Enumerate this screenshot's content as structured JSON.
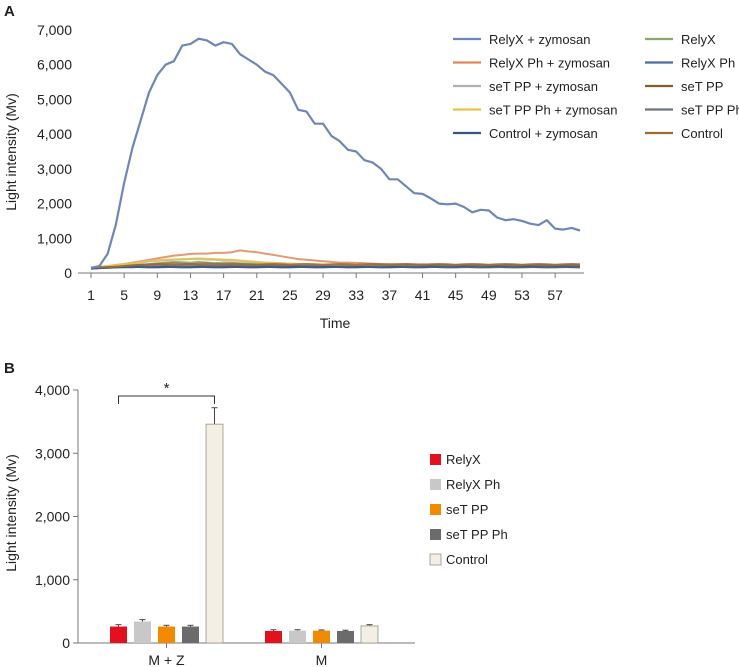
{
  "chart_data": [
    {
      "panel_label": "A",
      "type": "line",
      "xlabel": "Time",
      "ylabel": "Light intensity (Mv)",
      "xlim": [
        1,
        60
      ],
      "ylim": [
        0,
        7000
      ],
      "x_ticks": [
        1,
        5,
        9,
        13,
        17,
        21,
        25,
        29,
        33,
        37,
        41,
        45,
        49,
        53,
        57
      ],
      "y_ticks": [
        0,
        1000,
        2000,
        3000,
        4000,
        5000,
        6000,
        7000
      ],
      "y_tick_labels": [
        "0",
        "1,000",
        "2,000",
        "3,000",
        "4,000",
        "5,000",
        "6,000",
        "7,000"
      ],
      "legend_placement": "top-right",
      "series": [
        {
          "name": "RelyX + zymosan",
          "color": "#6e86b8",
          "values": [
            150,
            200,
            550,
            1400,
            2600,
            3600,
            4400,
            5200,
            5700,
            6000,
            6100,
            6550,
            6600,
            6750,
            6700,
            6550,
            6650,
            6600,
            6300,
            6150,
            6000,
            5800,
            5700,
            5450,
            5200,
            4700,
            4650,
            4300,
            4300,
            3950,
            3800,
            3550,
            3500,
            3250,
            3180,
            3000,
            2700,
            2700,
            2500,
            2300,
            2280,
            2150,
            2000,
            1980,
            2000,
            1900,
            1750,
            1820,
            1800,
            1600,
            1520,
            1550,
            1500,
            1420,
            1380,
            1520,
            1280,
            1250,
            1300,
            1220
          ]
        },
        {
          "name": "RelyX",
          "color": "#8aa86b",
          "values": [
            150,
            160,
            170,
            180,
            220,
            200,
            230,
            250,
            280,
            300,
            320,
            310,
            300,
            320,
            300,
            280,
            300,
            290,
            280,
            270,
            260,
            250,
            240,
            230,
            230,
            220,
            210,
            220,
            200,
            210,
            220,
            200,
            210,
            200,
            220,
            210,
            200,
            210,
            220,
            200,
            210,
            220,
            200,
            210,
            220,
            210,
            200,
            220,
            210,
            200,
            220,
            210,
            220,
            200,
            210,
            220,
            200,
            210,
            220,
            210
          ]
        },
        {
          "name": "RelyX Ph + zymosan",
          "color": "#e0875a",
          "values": [
            150,
            180,
            200,
            230,
            260,
            300,
            340,
            380,
            420,
            460,
            500,
            520,
            550,
            560,
            560,
            580,
            580,
            600,
            650,
            620,
            600,
            560,
            520,
            480,
            440,
            400,
            380,
            360,
            340,
            320,
            300,
            300,
            290,
            280,
            270,
            260,
            260,
            250,
            250,
            240,
            250,
            240,
            230,
            240,
            230,
            230,
            220,
            230,
            230,
            220,
            230,
            220,
            230,
            220,
            230,
            220,
            230,
            220,
            230,
            220
          ]
        },
        {
          "name": "RelyX Ph",
          "color": "#4a6aa0",
          "values": [
            120,
            140,
            150,
            160,
            170,
            160,
            180,
            170,
            160,
            170,
            180,
            170,
            160,
            170,
            180,
            170,
            160,
            170,
            180,
            170,
            160,
            170,
            180,
            170,
            160,
            170,
            180,
            170,
            160,
            170,
            180,
            170,
            160,
            170,
            180,
            170,
            160,
            170,
            180,
            170,
            160,
            170,
            180,
            170,
            160,
            170,
            180,
            170,
            160,
            170,
            180,
            170,
            160,
            170,
            180,
            170,
            160,
            170,
            180,
            170
          ]
        },
        {
          "name": "seT PP + zymosan",
          "color": "#b0b0b0",
          "values": [
            150,
            170,
            190,
            210,
            240,
            270,
            300,
            330,
            350,
            370,
            380,
            390,
            400,
            400,
            390,
            380,
            370,
            360,
            350,
            330,
            310,
            300,
            290,
            280,
            270,
            260,
            250,
            240,
            240,
            230,
            230,
            220,
            220,
            210,
            210,
            200,
            200,
            200,
            190,
            190,
            190,
            180,
            180,
            180,
            180,
            170,
            170,
            170,
            170,
            170,
            170,
            170,
            170,
            170,
            170,
            170,
            170,
            170,
            170,
            170
          ]
        },
        {
          "name": "seT PP",
          "color": "#8b5a2b",
          "values": [
            140,
            150,
            160,
            180,
            200,
            220,
            230,
            240,
            250,
            240,
            230,
            240,
            250,
            240,
            230,
            220,
            230,
            240,
            230,
            220,
            230,
            240,
            230,
            220,
            210,
            220,
            230,
            220,
            210,
            220,
            230,
            220,
            210,
            220,
            230,
            220,
            210,
            220,
            230,
            220,
            210,
            220,
            230,
            220,
            210,
            220,
            230,
            220,
            210,
            220,
            230,
            220,
            210,
            220,
            230,
            220,
            210,
            220,
            230,
            220
          ]
        },
        {
          "name": "seT PP Ph + zymosan",
          "color": "#e6c34a",
          "values": [
            150,
            170,
            200,
            230,
            260,
            290,
            320,
            350,
            370,
            380,
            390,
            400,
            410,
            420,
            410,
            400,
            390,
            380,
            360,
            340,
            320,
            300,
            290,
            280,
            270,
            260,
            250,
            240,
            240,
            230,
            230,
            220,
            220,
            210,
            210,
            200,
            200,
            200,
            190,
            190,
            190,
            180,
            180,
            180,
            180,
            170,
            170,
            170,
            170,
            170,
            170,
            170,
            170,
            170,
            170,
            170,
            170,
            170,
            170,
            170
          ]
        },
        {
          "name": "seT PP Ph",
          "color": "#6f7480",
          "values": [
            140,
            150,
            160,
            170,
            180,
            190,
            200,
            210,
            200,
            190,
            200,
            210,
            200,
            190,
            200,
            210,
            200,
            190,
            200,
            210,
            200,
            190,
            200,
            210,
            200,
            190,
            200,
            210,
            200,
            190,
            200,
            210,
            200,
            190,
            200,
            210,
            200,
            190,
            200,
            210,
            200,
            190,
            200,
            210,
            200,
            190,
            200,
            210,
            200,
            190,
            200,
            210,
            200,
            190,
            200,
            210,
            200,
            190,
            200,
            210
          ]
        },
        {
          "name": "Control + zymosan",
          "color": "#3a5280",
          "values": [
            130,
            140,
            150,
            160,
            170,
            180,
            170,
            160,
            170,
            180,
            170,
            160,
            170,
            180,
            170,
            160,
            170,
            180,
            170,
            160,
            170,
            180,
            170,
            160,
            170,
            180,
            170,
            160,
            170,
            180,
            170,
            160,
            170,
            180,
            170,
            160,
            170,
            180,
            170,
            160,
            170,
            180,
            170,
            160,
            170,
            180,
            170,
            160,
            170,
            180,
            170,
            160,
            170,
            180,
            170,
            160,
            170,
            180,
            170,
            160
          ]
        },
        {
          "name": "Control",
          "color": "#9a6a3a",
          "values": [
            150,
            160,
            170,
            180,
            200,
            220,
            240,
            250,
            260,
            270,
            280,
            270,
            260,
            270,
            280,
            270,
            260,
            270,
            260,
            250,
            240,
            250,
            260,
            250,
            240,
            250,
            260,
            250,
            240,
            250,
            260,
            250,
            240,
            250,
            260,
            250,
            240,
            250,
            260,
            250,
            240,
            250,
            260,
            250,
            240,
            250,
            260,
            250,
            240,
            250,
            260,
            250,
            240,
            250,
            260,
            250,
            240,
            250,
            260,
            250
          ]
        }
      ]
    },
    {
      "panel_label": "B",
      "type": "bar",
      "ylabel": "Light intensity (Mv)",
      "ylim": [
        0,
        4000
      ],
      "y_ticks": [
        0,
        1000,
        2000,
        3000,
        4000
      ],
      "y_tick_labels": [
        "0",
        "1,000",
        "2,000",
        "3,000",
        "4,000"
      ],
      "categories": [
        "M + Z",
        "M"
      ],
      "legend_placement": "right",
      "series": [
        {
          "name": "RelyX",
          "color": "#e3101e",
          "values": [
            260,
            190
          ],
          "errors": [
            30,
            20
          ]
        },
        {
          "name": "RelyX Ph",
          "color": "#c8c8c8",
          "values": [
            340,
            195
          ],
          "errors": [
            30,
            15
          ]
        },
        {
          "name": "seT PP",
          "color": "#f28a00",
          "values": [
            260,
            195
          ],
          "errors": [
            20,
            12
          ]
        },
        {
          "name": "seT PP Ph",
          "color": "#6b6b6b",
          "values": [
            260,
            190
          ],
          "errors": [
            20,
            12
          ]
        },
        {
          "name": "Control",
          "color": "#f3efe4",
          "values": [
            3460,
            270
          ],
          "errors": [
            260,
            20
          ]
        }
      ],
      "annotation": {
        "text": "*",
        "from_category": "M + Z",
        "from_series": "RelyX",
        "to_series": "Control"
      }
    }
  ]
}
